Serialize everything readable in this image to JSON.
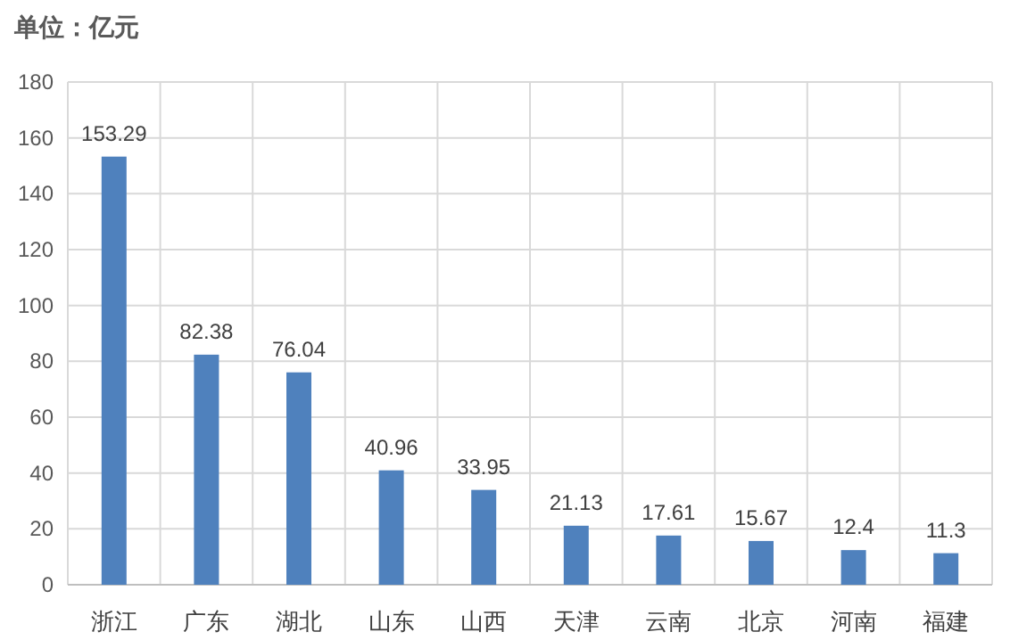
{
  "chart_data": {
    "type": "bar",
    "ylabel": "单位：亿元",
    "categories": [
      "浙江",
      "广东",
      "湖北",
      "山东",
      "山西",
      "天津",
      "云南",
      "北京",
      "河南",
      "福建"
    ],
    "values": [
      153.29,
      82.38,
      76.04,
      40.96,
      33.95,
      21.13,
      17.61,
      15.67,
      12.4,
      11.3
    ],
    "color": "#4f81bd",
    "ylim": [
      0,
      180
    ],
    "yticks": [
      0,
      20,
      40,
      60,
      80,
      100,
      120,
      140,
      160,
      180
    ],
    "grid": true,
    "data_labels": true
  }
}
